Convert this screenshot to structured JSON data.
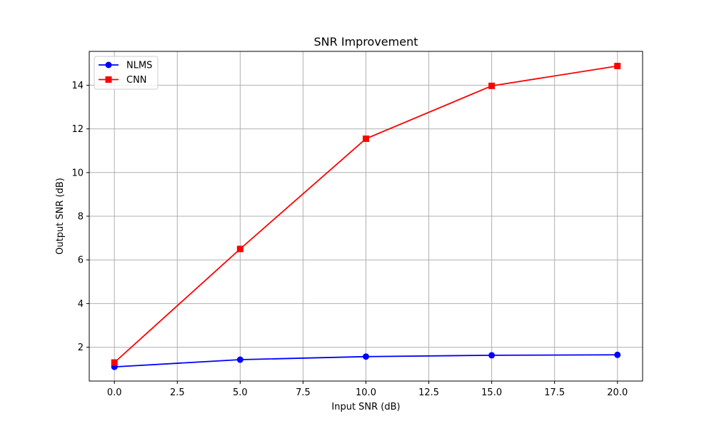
{
  "chart_data": {
    "type": "line",
    "title": "SNR Improvement",
    "xlabel": "Input SNR (dB)",
    "ylabel": "Output SNR (dB)",
    "xlim": [
      -1.0,
      21.0
    ],
    "ylim": [
      0.45,
      15.55
    ],
    "x_ticks": [
      0.0,
      2.5,
      5.0,
      7.5,
      10.0,
      12.5,
      15.0,
      17.5,
      20.0
    ],
    "x_tick_labels": [
      "0.0",
      "2.5",
      "5.0",
      "7.5",
      "10.0",
      "12.5",
      "15.0",
      "17.5",
      "20.0"
    ],
    "y_ticks": [
      2,
      4,
      6,
      8,
      10,
      12,
      14
    ],
    "y_tick_labels": [
      "2",
      "4",
      "6",
      "8",
      "10",
      "12",
      "14"
    ],
    "grid": true,
    "legend_position": "upper-left",
    "x": [
      0,
      5,
      10,
      15,
      20
    ],
    "series": [
      {
        "name": "NLMS",
        "color": "#0000ff",
        "marker": "circle",
        "values": [
          1.1,
          1.43,
          1.57,
          1.63,
          1.65
        ]
      },
      {
        "name": "CNN",
        "color": "#ff0000",
        "marker": "square",
        "values": [
          1.3,
          6.5,
          11.55,
          13.97,
          14.88
        ]
      }
    ]
  }
}
